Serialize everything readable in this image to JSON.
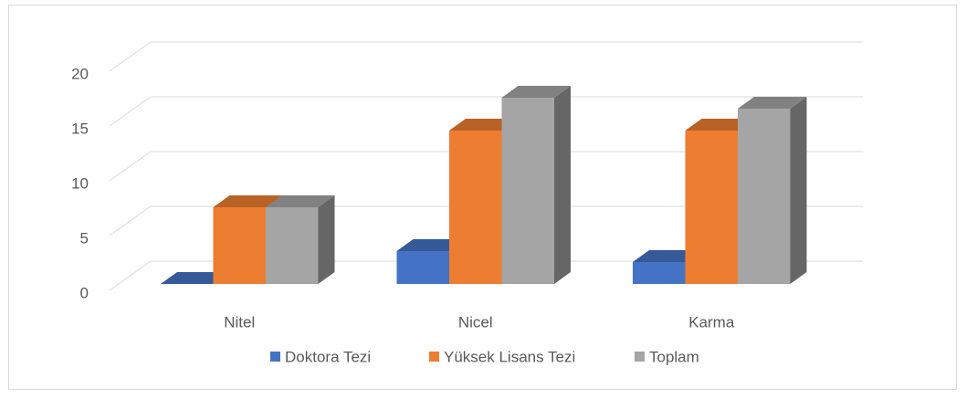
{
  "chart_data": {
    "type": "bar3d",
    "categories": [
      "Nitel",
      "Nicel",
      "Karma"
    ],
    "series": [
      {
        "name": "Doktora Tezi",
        "color": "#4472c4",
        "values": [
          0,
          3,
          2
        ]
      },
      {
        "name": "Yüksek Lisans Tezi",
        "color": "#ed7d31",
        "values": [
          7,
          14,
          14
        ]
      },
      {
        "name": "Toplam",
        "color": "#a5a5a5",
        "values": [
          7,
          17,
          16
        ]
      }
    ],
    "ylim": [
      0,
      20
    ],
    "yticks": [
      0,
      5,
      10,
      15,
      20
    ],
    "grid": true,
    "legend": "bottom"
  }
}
